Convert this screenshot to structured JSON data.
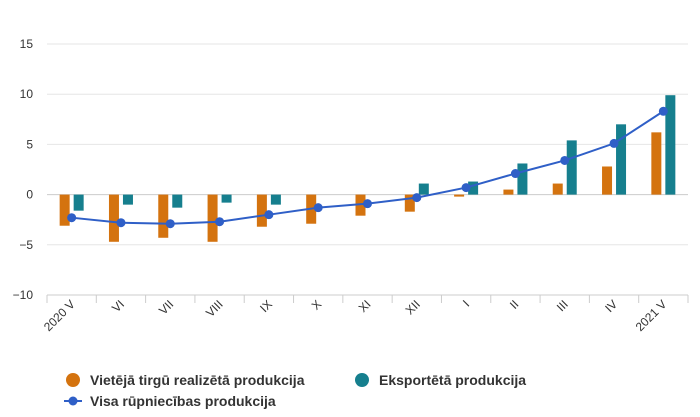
{
  "chart_data": {
    "type": "bar",
    "categories": [
      "2020 V",
      "VI",
      "VII",
      "VIII",
      "IX",
      "X",
      "XI",
      "XII",
      "I",
      "II",
      "III",
      "IV",
      "2021 V"
    ],
    "series": [
      {
        "name": "Vietējā tirgū realizētā produkcija",
        "type": "bar",
        "color": "#d4730f",
        "values": [
          -3.1,
          -4.7,
          -4.3,
          -4.7,
          -3.2,
          -2.9,
          -2.1,
          -1.7,
          -0.2,
          0.5,
          1.1,
          2.8,
          6.2
        ]
      },
      {
        "name": "Eksportētā produkcija",
        "type": "bar",
        "color": "#167f8e",
        "values": [
          -1.6,
          -1.0,
          -1.3,
          -0.8,
          -1.0,
          0.0,
          0.0,
          1.1,
          1.3,
          3.1,
          5.4,
          7.0,
          9.9
        ]
      },
      {
        "name": "Visa rūpniecības produkcija",
        "type": "line",
        "color": "#2f5fc7",
        "values": [
          -2.3,
          -2.8,
          -2.9,
          -2.7,
          -2.0,
          -1.3,
          -0.9,
          -0.3,
          0.7,
          2.1,
          3.4,
          5.1,
          8.3
        ]
      }
    ],
    "ylim": [
      -10,
      15
    ],
    "yticks": [
      "15",
      "10",
      "5",
      "0",
      "−5",
      "−10"
    ],
    "ytick_values": [
      15,
      10,
      5,
      0,
      -5,
      -10
    ],
    "grid": true,
    "legend_position": "bottom"
  }
}
